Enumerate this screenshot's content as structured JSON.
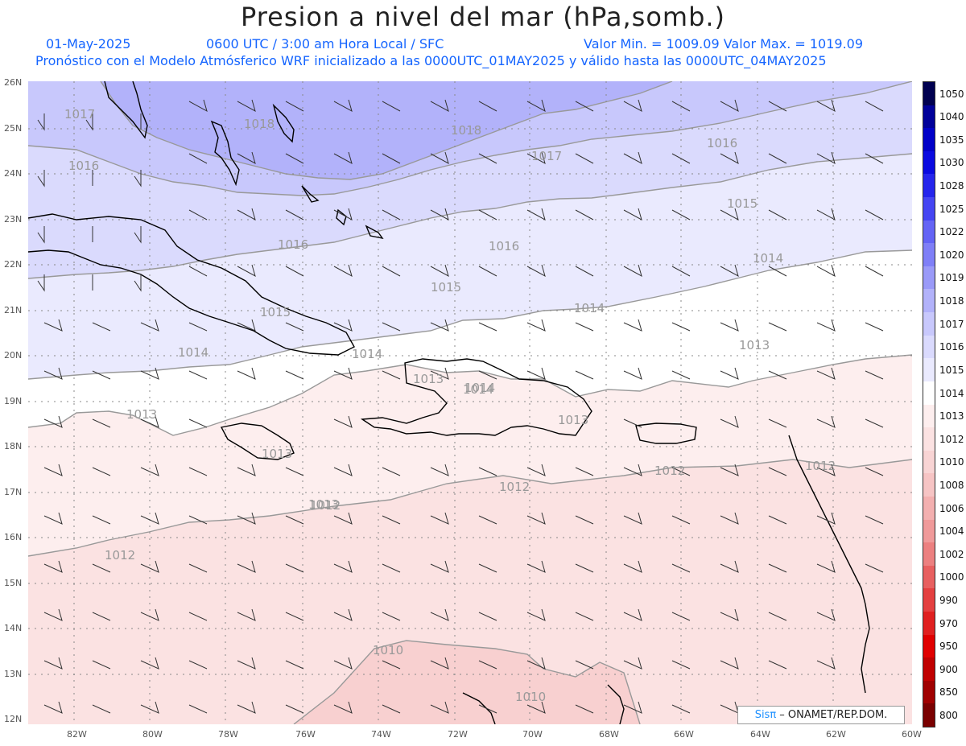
{
  "header": {
    "title": "Presion a nivel del mar (hPa,somb.)",
    "date": "01-May-2025",
    "time_info": "0600 UTC / 3:00 am Hora Local / SFC",
    "min_max": "Valor Min. = 1009.09  Valor Max. = 1019.09",
    "model_info": "Pronóstico con el Modelo Atmósferico WRF inicializado a las 0000UTC_01MAY2025 y válido hasta las  0000UTC_04MAY2025"
  },
  "map": {
    "lat_labels": [
      "26N",
      "25N",
      "24N",
      "23N",
      "22N",
      "21N",
      "20N",
      "19N",
      "18N",
      "17N",
      "16N",
      "15N",
      "14N",
      "13N",
      "12N"
    ],
    "lon_labels": [
      "82W",
      "80W",
      "78W",
      "76W",
      "74W",
      "72W",
      "70W",
      "68W",
      "66W",
      "64W",
      "62W",
      "60W"
    ],
    "contour_labels": [
      "1017",
      "1018",
      "1018",
      "1017",
      "1016",
      "1016",
      "1016",
      "1015",
      "1014",
      "1016",
      "1015",
      "1015",
      "1014",
      "1014",
      "1014",
      "1014",
      "1013",
      "1013",
      "1013",
      "1014",
      "1013",
      "1013",
      "1013",
      "1012",
      "1012",
      "1012",
      "1012",
      "1012",
      "1010",
      "1010"
    ]
  },
  "colorbar": {
    "ticks": [
      "1050",
      "1040",
      "1035",
      "1030",
      "1028",
      "1025",
      "1022",
      "1020",
      "1019",
      "1018",
      "1017",
      "1016",
      "1015",
      "1014",
      "1013",
      "1012",
      "1010",
      "1008",
      "1006",
      "1004",
      "1002",
      "1000",
      "990",
      "970",
      "950",
      "900",
      "850",
      "800"
    ],
    "colors": [
      "#000050",
      "#00009a",
      "#0000c8",
      "#0a0ae0",
      "#2525ec",
      "#4545f2",
      "#6464f5",
      "#7f7ff7",
      "#9a9af8",
      "#b2b2fa",
      "#c8c8fc",
      "#dadafd",
      "#eaeafe",
      "#ffffff",
      "#fdeeee",
      "#fbe2e2",
      "#f8d4d4",
      "#f6c4c4",
      "#f3b0b0",
      "#f09a9a",
      "#ec8080",
      "#e86060",
      "#e44040",
      "#e02020",
      "#e00000",
      "#c00000",
      "#a00000",
      "#7a0000"
    ]
  },
  "credit": {
    "logo": "Sisπ",
    "text": " – ONAMET/REP.DOM."
  }
}
